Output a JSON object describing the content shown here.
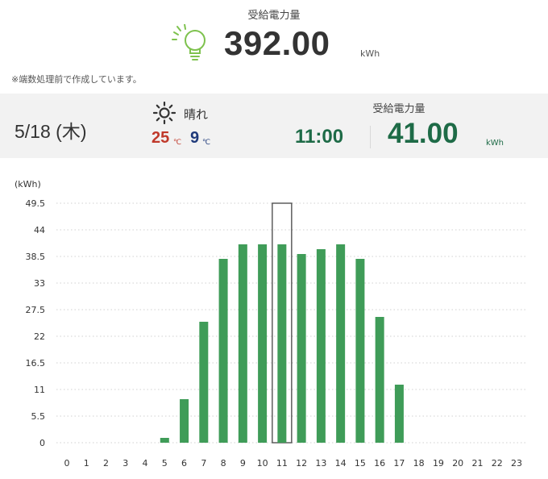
{
  "summary": {
    "label": "受給電力量",
    "value": "392.00",
    "unit": "kWh",
    "note": "※端数処理前で作成しています。",
    "icon": "lightbulb-icon"
  },
  "day": {
    "date": "5/18 (木)",
    "weather": {
      "icon": "sun-icon",
      "text": "晴れ"
    },
    "temp_high": "25",
    "temp_high_unit": "℃",
    "temp_low": "9",
    "temp_low_unit": "℃"
  },
  "selected": {
    "label": "受給電力量",
    "time": "11:00",
    "value": "41.00",
    "unit": "kWh"
  },
  "colors": {
    "bar": "#3f9c58",
    "accent_text": "#1e6b47",
    "temp_high": "#c0392b",
    "temp_low": "#1f3a7a",
    "bulb": "#7ec24e"
  },
  "chart_data": {
    "type": "bar",
    "ylabel": "(kWh)",
    "ylim": [
      0,
      49.5
    ],
    "yticks": [
      "0",
      "5.5",
      "11",
      "16.5",
      "22",
      "27.5",
      "33",
      "38.5",
      "44",
      "49.5"
    ],
    "categories": [
      "0",
      "1",
      "2",
      "3",
      "4",
      "5",
      "6",
      "7",
      "8",
      "9",
      "10",
      "11",
      "12",
      "13",
      "14",
      "15",
      "16",
      "17",
      "18",
      "19",
      "20",
      "21",
      "22",
      "23"
    ],
    "values": [
      0,
      0,
      0,
      0,
      0,
      1,
      9,
      25,
      38,
      41,
      41,
      41,
      39,
      40,
      41,
      38,
      26,
      12,
      0,
      0,
      0,
      0,
      0,
      0
    ],
    "selected_index": 11,
    "grid": true
  }
}
